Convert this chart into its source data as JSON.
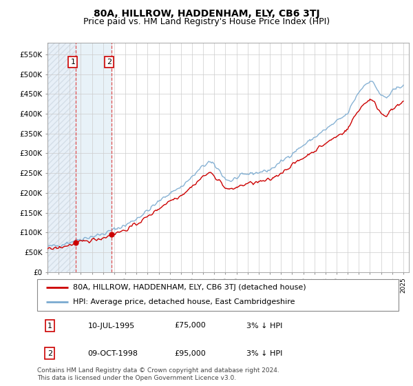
{
  "title": "80A, HILLROW, HADDENHAM, ELY, CB6 3TJ",
  "subtitle": "Price paid vs. HM Land Registry's House Price Index (HPI)",
  "ylim": [
    0,
    575000
  ],
  "yticks": [
    0,
    50000,
    100000,
    150000,
    200000,
    250000,
    300000,
    350000,
    400000,
    450000,
    500000,
    550000
  ],
  "ytick_labels": [
    "£0",
    "£50K",
    "£100K",
    "£150K",
    "£200K",
    "£250K",
    "£300K",
    "£350K",
    "£400K",
    "£450K",
    "£500K",
    "£550K"
  ],
  "purchases": [
    {
      "date_year": 1995.53,
      "price": 75000,
      "label": "1"
    },
    {
      "date_year": 1998.78,
      "price": 95000,
      "label": "2"
    }
  ],
  "legend_line1": "80A, HILLROW, HADDENHAM, ELY, CB6 3TJ (detached house)",
  "legend_line2": "HPI: Average price, detached house, East Cambridgeshire",
  "table_rows": [
    {
      "num": "1",
      "date": "10-JUL-1995",
      "price": "£75,000",
      "hpi": "3% ↓ HPI"
    },
    {
      "num": "2",
      "date": "09-OCT-1998",
      "price": "£95,000",
      "hpi": "3% ↓ HPI"
    }
  ],
  "footnote": "Contains HM Land Registry data © Crown copyright and database right 2024.\nThis data is licensed under the Open Government Licence v3.0.",
  "hpi_color": "#7aaad0",
  "price_color": "#cc0000",
  "purchase_dot_color": "#cc0000",
  "hatch_color": "#bbccdd",
  "grid_color": "#cccccc",
  "vline_color": "#dd3333",
  "box_color": "#cc0000",
  "title_fontsize": 10,
  "subtitle_fontsize": 9,
  "tick_fontsize": 7.5,
  "legend_fontsize": 8,
  "table_fontsize": 8,
  "footnote_fontsize": 6.5
}
